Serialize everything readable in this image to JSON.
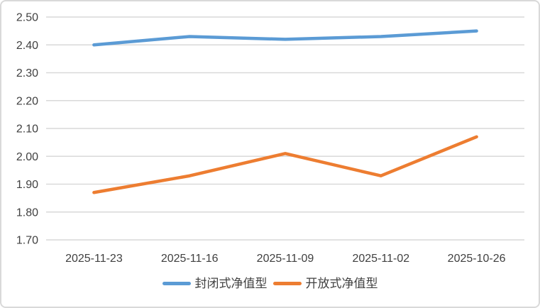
{
  "chart_data": {
    "type": "line",
    "title": "",
    "xlabel": "",
    "ylabel": "",
    "categories": [
      "2025-11-23",
      "2025-11-16",
      "2025-11-09",
      "2025-11-02",
      "2025-10-26"
    ],
    "series": [
      {
        "name": "封闭式净值型",
        "color": "#5B9BD5",
        "values": [
          2.4,
          2.43,
          2.42,
          2.43,
          2.45
        ]
      },
      {
        "name": "开放式净值型",
        "color": "#ED7D31",
        "values": [
          1.87,
          1.93,
          2.01,
          1.93,
          2.07
        ]
      }
    ],
    "ylim": [
      1.7,
      2.5
    ],
    "yticks": [
      "2.50",
      "2.40",
      "2.30",
      "2.20",
      "2.10",
      "2.00",
      "1.90",
      "1.80",
      "1.70"
    ],
    "grid": true,
    "legend_position": "bottom"
  },
  "colors": {
    "background": "#FFFFFF",
    "border": "#D9D9D9",
    "gridline": "#D9D9D9",
    "tick_label": "#404040",
    "legend_label": "#404040"
  }
}
